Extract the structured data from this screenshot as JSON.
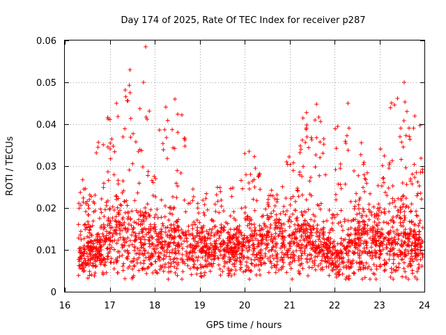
{
  "chart_data": {
    "type": "scatter",
    "title": "Day 174 of 2025, Rate Of TEC Index for receiver p287",
    "xlabel": "GPS time / hours",
    "ylabel": "ROTI / TECUs",
    "xlim": [
      16,
      24
    ],
    "ylim": [
      0,
      0.06
    ],
    "xticks": [
      16,
      17,
      18,
      19,
      20,
      21,
      22,
      23,
      24
    ],
    "yticks": [
      0,
      0.01,
      0.02,
      0.03,
      0.04,
      0.05,
      0.06
    ],
    "xtick_labels": [
      "16",
      "17",
      "18",
      "19",
      "20",
      "21",
      "22",
      "23",
      "24"
    ],
    "ytick_labels": [
      "0",
      "0.01",
      "0.02",
      "0.03",
      "0.04",
      "0.05",
      "0.06"
    ],
    "grid": true,
    "marker": "+",
    "color": "#ff0000",
    "series": [
      {
        "name": "ROTI",
        "envelope": [
          {
            "t": 16.3,
            "base": 0.009,
            "spread": 0.006,
            "peak": 0.027
          },
          {
            "t": 16.5,
            "base": 0.01,
            "spread": 0.007,
            "peak": 0.026
          },
          {
            "t": 16.7,
            "base": 0.009,
            "spread": 0.006,
            "peak": 0.022
          },
          {
            "t": 16.9,
            "base": 0.012,
            "spread": 0.01,
            "peak": 0.04
          },
          {
            "t": 17.1,
            "base": 0.013,
            "spread": 0.012,
            "peak": 0.045
          },
          {
            "t": 17.3,
            "base": 0.013,
            "spread": 0.012,
            "peak": 0.041
          },
          {
            "t": 17.5,
            "base": 0.012,
            "spread": 0.011,
            "peak": 0.053
          },
          {
            "t": 17.7,
            "base": 0.012,
            "spread": 0.01,
            "peak": 0.05
          },
          {
            "t": 17.9,
            "base": 0.011,
            "spread": 0.008,
            "peak": 0.03
          },
          {
            "t": 18.1,
            "base": 0.01,
            "spread": 0.008,
            "peak": 0.028
          },
          {
            "t": 18.4,
            "base": 0.012,
            "spread": 0.01,
            "peak": 0.046
          },
          {
            "t": 18.7,
            "base": 0.01,
            "spread": 0.008,
            "peak": 0.026
          },
          {
            "t": 19.0,
            "base": 0.01,
            "spread": 0.007,
            "peak": 0.023
          },
          {
            "t": 19.3,
            "base": 0.01,
            "spread": 0.007,
            "peak": 0.024
          },
          {
            "t": 19.6,
            "base": 0.01,
            "spread": 0.007,
            "peak": 0.027
          },
          {
            "t": 19.9,
            "base": 0.01,
            "spread": 0.007,
            "peak": 0.022
          },
          {
            "t": 20.1,
            "base": 0.011,
            "spread": 0.009,
            "peak": 0.034
          },
          {
            "t": 20.4,
            "base": 0.011,
            "spread": 0.008,
            "peak": 0.024
          },
          {
            "t": 20.7,
            "base": 0.012,
            "spread": 0.009,
            "peak": 0.026
          },
          {
            "t": 20.9,
            "base": 0.012,
            "spread": 0.01,
            "peak": 0.028
          },
          {
            "t": 21.2,
            "base": 0.012,
            "spread": 0.01,
            "peak": 0.036
          },
          {
            "t": 21.5,
            "base": 0.012,
            "spread": 0.01,
            "peak": 0.045
          },
          {
            "t": 21.8,
            "base": 0.009,
            "spread": 0.006,
            "peak": 0.02
          },
          {
            "t": 22.0,
            "base": 0.008,
            "spread": 0.005,
            "peak": 0.021
          },
          {
            "t": 22.3,
            "base": 0.01,
            "spread": 0.009,
            "peak": 0.045
          },
          {
            "t": 22.6,
            "base": 0.011,
            "spread": 0.009,
            "peak": 0.033
          },
          {
            "t": 22.9,
            "base": 0.012,
            "spread": 0.01,
            "peak": 0.035
          },
          {
            "t": 23.2,
            "base": 0.011,
            "spread": 0.009,
            "peak": 0.034
          },
          {
            "t": 23.5,
            "base": 0.013,
            "spread": 0.012,
            "peak": 0.05
          },
          {
            "t": 23.8,
            "base": 0.011,
            "spread": 0.009,
            "peak": 0.04
          },
          {
            "t": 24.0,
            "base": 0.01,
            "spread": 0.008,
            "peak": 0.026
          }
        ],
        "highlights": [
          {
            "x": 17.8,
            "y": 0.0585
          },
          {
            "x": 17.45,
            "y": 0.053
          },
          {
            "x": 17.75,
            "y": 0.05
          },
          {
            "x": 23.55,
            "y": 0.05
          },
          {
            "x": 22.3,
            "y": 0.045
          },
          {
            "x": 21.6,
            "y": 0.0448
          },
          {
            "x": 18.45,
            "y": 0.046
          },
          {
            "x": 17.15,
            "y": 0.045
          },
          {
            "x": 20.1,
            "y": 0.0335
          },
          {
            "x": 23.9,
            "y": 0.0397
          }
        ]
      }
    ]
  }
}
